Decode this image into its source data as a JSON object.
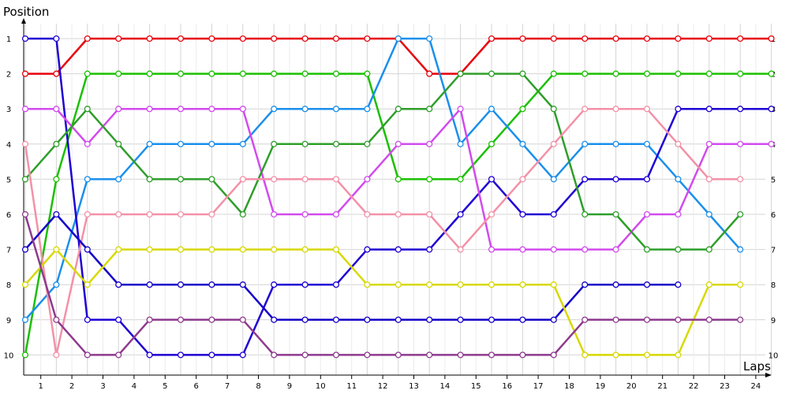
{
  "chart_data": {
    "type": "line",
    "title": "",
    "xlabel": "Laps",
    "ylabel": "Position",
    "x": [
      0,
      1,
      2,
      3,
      4,
      5,
      6,
      7,
      8,
      9,
      10,
      11,
      12,
      13,
      14,
      15,
      16,
      17,
      18,
      19,
      20,
      21,
      22,
      23,
      24
    ],
    "xticks": [
      "1",
      "2",
      "3",
      "4",
      "5",
      "6",
      "7",
      "8",
      "9",
      "10",
      "11",
      "12",
      "13",
      "14",
      "15",
      "16",
      "17",
      "18",
      "19",
      "20",
      "21",
      "22",
      "23",
      "24"
    ],
    "yticks": [
      "1",
      "2",
      "3",
      "4",
      "5",
      "6",
      "7",
      "8",
      "9",
      "10"
    ],
    "ylim": [
      1,
      10
    ],
    "y_inverted": true,
    "grid": true,
    "legend": "none",
    "series": [
      {
        "color": "#e8000b",
        "values": [
          2,
          2,
          1,
          1,
          1,
          1,
          1,
          1,
          1,
          1,
          1,
          1,
          1,
          2,
          2,
          1,
          1,
          1,
          1,
          1,
          1,
          1,
          1,
          1,
          1
        ]
      },
      {
        "color": "#1ac000",
        "values": [
          10,
          5,
          2,
          2,
          2,
          2,
          2,
          2,
          2,
          2,
          2,
          2,
          5,
          5,
          5,
          4,
          3,
          2,
          2,
          2,
          2,
          2,
          2,
          2,
          2
        ]
      },
      {
        "color": "#1a8fec",
        "values": [
          9,
          8,
          5,
          5,
          4,
          4,
          4,
          4,
          3,
          3,
          3,
          3,
          1,
          1,
          4,
          3,
          4,
          5,
          4,
          4,
          4,
          5,
          6,
          7,
          null
        ]
      },
      {
        "color": "#1e00d4",
        "values": [
          1,
          1,
          9,
          9,
          10,
          10,
          10,
          10,
          8,
          8,
          8,
          7,
          7,
          7,
          6,
          5,
          6,
          6,
          5,
          5,
          5,
          3,
          3,
          3,
          3
        ]
      },
      {
        "color": "#d24aee",
        "values": [
          3,
          3,
          4,
          3,
          3,
          3,
          3,
          3,
          6,
          6,
          6,
          5,
          4,
          4,
          3,
          7,
          7,
          7,
          7,
          7,
          6,
          6,
          4,
          4,
          4
        ]
      },
      {
        "color": "#2e9e2a",
        "values": [
          5,
          4,
          3,
          4,
          5,
          5,
          5,
          6,
          4,
          4,
          4,
          4,
          3,
          3,
          2,
          2,
          2,
          3,
          6,
          6,
          7,
          7,
          7,
          6,
          null
        ]
      },
      {
        "color": "#f391a7",
        "values": [
          4,
          10,
          6,
          6,
          6,
          6,
          6,
          5,
          5,
          5,
          5,
          6,
          6,
          6,
          7,
          6,
          5,
          4,
          3,
          3,
          3,
          4,
          5,
          5,
          null
        ]
      },
      {
        "color": "#1400c8",
        "values": [
          7,
          6,
          7,
          8,
          8,
          8,
          8,
          8,
          9,
          9,
          9,
          9,
          9,
          9,
          9,
          9,
          9,
          9,
          8,
          8,
          8,
          8,
          null,
          null,
          null
        ]
      },
      {
        "color": "#d8d800",
        "values": [
          8,
          7,
          8,
          7,
          7,
          7,
          7,
          7,
          7,
          7,
          7,
          8,
          8,
          8,
          8,
          8,
          8,
          8,
          10,
          10,
          10,
          10,
          8,
          8,
          null
        ]
      },
      {
        "color": "#8e3a8e",
        "values": [
          6,
          9,
          10,
          10,
          9,
          9,
          9,
          9,
          10,
          10,
          10,
          10,
          10,
          10,
          10,
          10,
          10,
          10,
          9,
          9,
          9,
          9,
          9,
          9,
          null
        ]
      }
    ]
  }
}
